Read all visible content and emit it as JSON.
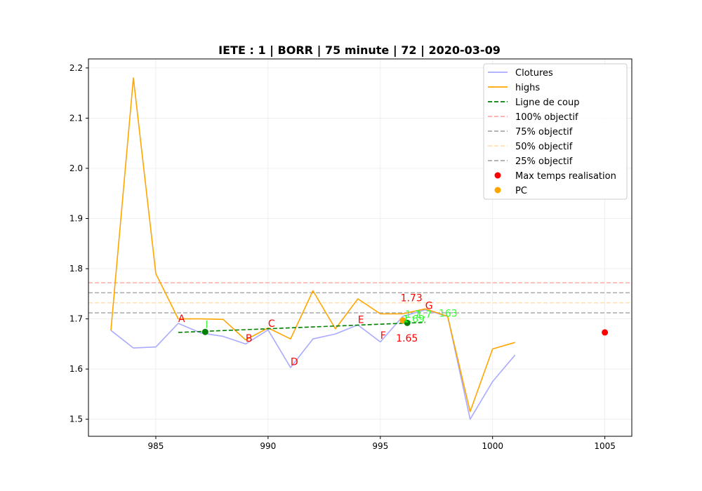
{
  "chart_data": {
    "type": "line",
    "title": "IETE : 1 | BORR | 75 minute | 72 | 2020-03-09",
    "xlabel": "",
    "ylabel": "",
    "xlim": [
      982,
      1006.2
    ],
    "ylim": [
      1.466,
      2.218
    ],
    "x_ticks": [
      985,
      990,
      995,
      1000,
      1005
    ],
    "y_ticks": [
      1.5,
      1.6,
      1.7,
      1.8,
      1.9,
      2.0,
      2.1,
      2.2
    ],
    "grid": true,
    "legend_position": "top-right",
    "series": [
      {
        "name": "Clotures",
        "kind": "line",
        "color": "#aaaaff",
        "x": [
          983,
          984,
          985,
          986,
          987,
          988,
          989,
          990,
          991,
          992,
          993,
          994,
          995,
          996,
          997,
          998,
          999,
          1000,
          1001
        ],
        "y": [
          1.677,
          1.642,
          1.644,
          1.691,
          1.672,
          1.665,
          1.65,
          1.678,
          1.603,
          1.66,
          1.67,
          1.688,
          1.654,
          1.705,
          1.718,
          1.705,
          1.5,
          1.575,
          1.628
        ]
      },
      {
        "name": "highs",
        "kind": "line",
        "color": "#ffa500",
        "x": [
          983,
          984,
          985,
          986,
          987,
          988,
          989,
          990,
          991,
          992,
          993,
          994,
          995,
          996,
          997,
          998,
          999,
          1000,
          1001
        ],
        "y": [
          1.677,
          2.18,
          1.79,
          1.7,
          1.7,
          1.699,
          1.658,
          1.682,
          1.66,
          1.756,
          1.68,
          1.74,
          1.71,
          1.71,
          1.72,
          1.705,
          1.515,
          1.64,
          1.653
        ]
      },
      {
        "name": "Ligne de coup",
        "kind": "dashed",
        "color": "#008000",
        "x": [
          986,
          997
        ],
        "y": [
          1.673,
          1.693
        ]
      },
      {
        "name": "100% objectif",
        "kind": "hline",
        "color": "#ffaaaa",
        "y": 1.772
      },
      {
        "name": "75% objectif",
        "kind": "hline",
        "color": "#aaaaaa",
        "y": 1.752
      },
      {
        "name": "50% objectif",
        "kind": "hline",
        "color": "#ffe0b0",
        "y": 1.732
      },
      {
        "name": "25% objectif",
        "kind": "hline",
        "color": "#aaaaaa",
        "y": 1.712
      },
      {
        "name": "Max temps realisation",
        "kind": "point",
        "color": "#ff0000",
        "x": [
          1005
        ],
        "y": [
          1.673
        ]
      },
      {
        "name": "PC",
        "kind": "point",
        "color": "#ffa500",
        "x": [
          996.0
        ],
        "y": [
          1.697
        ]
      }
    ],
    "extra_points": [
      {
        "x": 987.2,
        "y": 1.674,
        "color": "#008000"
      },
      {
        "x": 996.2,
        "y": 1.692,
        "color": "#008000"
      }
    ],
    "annotations": [
      {
        "text": "A",
        "x": 986.0,
        "y": 1.694,
        "color": "#ff0000"
      },
      {
        "text": "B",
        "x": 989.0,
        "y": 1.655,
        "color": "#ff0000"
      },
      {
        "text": "C",
        "x": 990.0,
        "y": 1.684,
        "color": "#ff0000"
      },
      {
        "text": "D",
        "x": 991.0,
        "y": 1.608,
        "color": "#ff0000"
      },
      {
        "text": "E",
        "x": 994.0,
        "y": 1.692,
        "color": "#ff0000"
      },
      {
        "text": "F",
        "x": 995.0,
        "y": 1.66,
        "color": "#ff0000"
      },
      {
        "text": "G",
        "x": 997.0,
        "y": 1.72,
        "color": "#ff0000"
      },
      {
        "text": "1.73",
        "x": 995.9,
        "y": 1.735,
        "color": "#ff0000"
      },
      {
        "text": "1.65",
        "x": 995.7,
        "y": 1.655,
        "color": "#ff0000"
      },
      {
        "text": "1.69",
        "x": 996.0,
        "y": 1.693,
        "color": "#33ff33"
      },
      {
        "text": "1.7",
        "x": 996.1,
        "y": 1.702,
        "color": "#33ff33"
      },
      {
        "text": "1.7",
        "x": 996.6,
        "y": 1.702,
        "color": "#33ff33"
      },
      {
        "text": "163",
        "x": 997.6,
        "y": 1.704,
        "color": "#33ff33"
      },
      {
        "text": "I",
        "x": 987.2,
        "y": 1.682,
        "color": "#33ff33"
      }
    ]
  }
}
